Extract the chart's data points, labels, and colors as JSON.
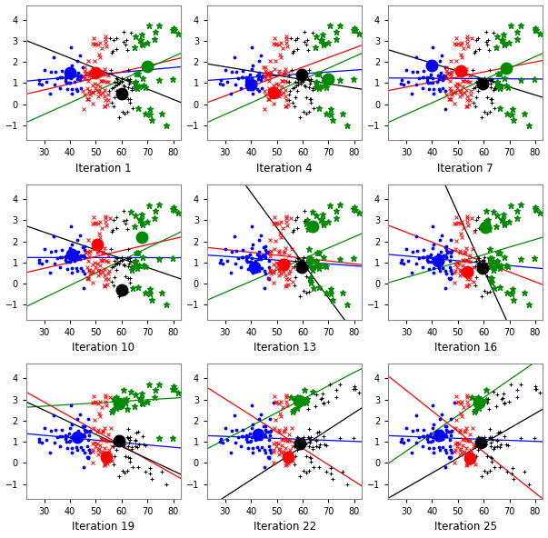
{
  "iterations": [
    1,
    4,
    7,
    10,
    13,
    16,
    19,
    22,
    25
  ],
  "xlim": [
    23,
    83
  ],
  "ylim": [
    -1.7,
    4.7
  ],
  "xticks": [
    30,
    40,
    50,
    60,
    70,
    80
  ],
  "yticks": [
    -1,
    0,
    1,
    2,
    3,
    4
  ],
  "colors": {
    "blue": "#0000FF",
    "red": "#FF0000",
    "green": "#008B00",
    "black": "#000000"
  },
  "n_per_group": 50,
  "figsize": [
    6.03,
    5.92
  ],
  "dpi": 100
}
